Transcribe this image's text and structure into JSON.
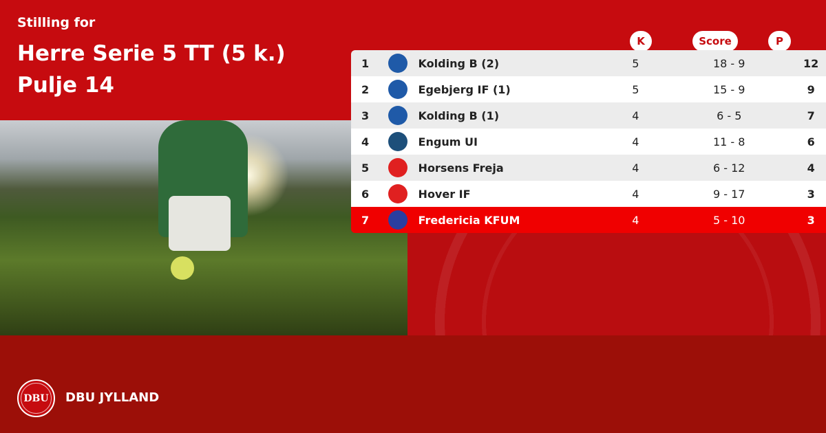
{
  "header": {
    "subtitle": "Stilling for",
    "title_line1": "Herre Serie 5 TT (5 k.)",
    "title_line2": "Pulje 14"
  },
  "columns": {
    "k": "K",
    "score": "Score",
    "p": "P"
  },
  "rows": [
    {
      "pos": "1",
      "team": "Kolding B (2)",
      "k": "5",
      "score": "18 - 9",
      "p": "12",
      "logo": "kolding-b-crest",
      "color": "#1f5aa8"
    },
    {
      "pos": "2",
      "team": "Egebjerg IF (1)",
      "k": "5",
      "score": "15 - 9",
      "p": "9",
      "logo": "egebjerg-if-crest",
      "color": "#1f5aa8"
    },
    {
      "pos": "3",
      "team": "Kolding B (1)",
      "k": "4",
      "score": "6 - 5",
      "p": "7",
      "logo": "kolding-b-crest",
      "color": "#1f5aa8"
    },
    {
      "pos": "4",
      "team": "Engum UI",
      "k": "4",
      "score": "11 - 8",
      "p": "6",
      "logo": "engum-ui-crest",
      "color": "#1d4f7a"
    },
    {
      "pos": "5",
      "team": "Horsens Freja",
      "k": "4",
      "score": "6 - 12",
      "p": "4",
      "logo": "horsens-freja-crest",
      "color": "#e02020"
    },
    {
      "pos": "6",
      "team": "Hover IF",
      "k": "4",
      "score": "9 - 17",
      "p": "3",
      "logo": "hover-if-crest",
      "color": "#e02020"
    },
    {
      "pos": "7",
      "team": "Fredericia KFUM",
      "k": "4",
      "score": "5 - 10",
      "p": "3",
      "logo": "fredericia-kfum-crest",
      "color": "#2a3ea0",
      "highlighted": true
    }
  ],
  "footer": {
    "logo_text": "DBU",
    "brand": "DBU JYLLAND"
  },
  "colors": {
    "primary": "#c60b0f",
    "footer": "#9c0f08",
    "highlight": "#f00000"
  }
}
